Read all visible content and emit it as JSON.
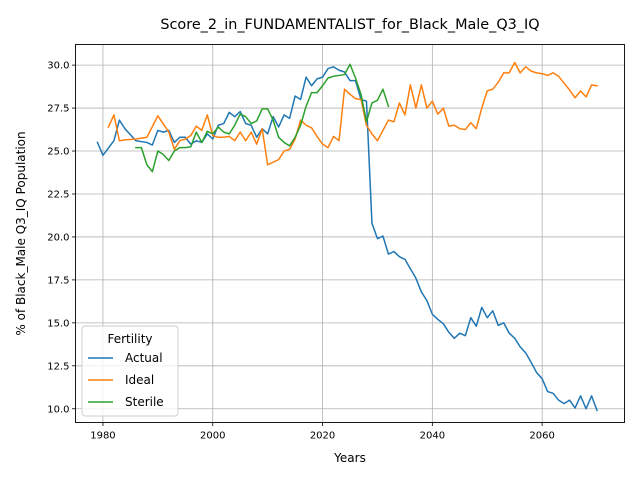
{
  "chart_data": {
    "type": "line",
    "title": "Score_2_in_FUNDAMENTALIST_for_Black_Male_Q3_IQ",
    "xlabel": "Years",
    "ylabel": "% of Black_Male Q3_IQ Population",
    "xlim": [
      1975,
      2075
    ],
    "ylim": [
      9.2,
      31.2
    ],
    "xticks": [
      1980,
      2000,
      2020,
      2040,
      2060
    ],
    "xtick_labels": [
      "1980",
      "2000",
      "2020",
      "2040",
      "2060"
    ],
    "yticks": [
      10.0,
      12.5,
      15.0,
      17.5,
      20.0,
      22.5,
      25.0,
      27.5,
      30.0
    ],
    "ytick_labels": [
      "10.0",
      "12.5",
      "15.0",
      "17.5",
      "20.0",
      "22.5",
      "25.0",
      "27.5",
      "30.0"
    ],
    "grid": true,
    "legend": {
      "title": "Fertility",
      "placement": "lower-left"
    },
    "series": [
      {
        "name": "Actual",
        "color": "#1f77b4",
        "x": [
          1979,
          1980,
          1982,
          1983,
          1984,
          1986,
          1988,
          1989,
          1990,
          1991,
          1992,
          1993,
          1994,
          1995,
          1996,
          1997,
          1998,
          1999,
          2000,
          2001,
          2002,
          2003,
          2004,
          2005,
          2006,
          2007,
          2008,
          2009,
          2010,
          2011,
          2012,
          2013,
          2014,
          2015,
          2016,
          2017,
          2018,
          2019,
          2020,
          2021,
          2022,
          2023,
          2024,
          2025,
          2026,
          2027,
          2028,
          2029,
          2030,
          2031,
          2032,
          2033,
          2034,
          2035,
          2036,
          2037,
          2038,
          2039,
          2040,
          2041,
          2042,
          2043,
          2044,
          2045,
          2046,
          2047,
          2048,
          2049,
          2050,
          2051,
          2052,
          2053,
          2054,
          2055,
          2056,
          2057,
          2058,
          2059,
          2060,
          2061,
          2062,
          2063,
          2064,
          2065,
          2066,
          2067,
          2068,
          2069,
          2070
        ],
        "y": [
          25.5,
          24.75,
          25.6,
          26.8,
          26.3,
          25.6,
          25.5,
          25.35,
          26.2,
          26.1,
          26.2,
          25.5,
          25.8,
          25.8,
          25.4,
          25.6,
          25.5,
          26.0,
          25.7,
          26.5,
          26.6,
          27.25,
          27.0,
          27.3,
          26.6,
          26.5,
          25.8,
          26.3,
          26.0,
          27.0,
          26.4,
          27.1,
          26.9,
          28.2,
          28.0,
          29.3,
          28.8,
          29.2,
          29.3,
          29.8,
          29.9,
          29.7,
          29.6,
          29.1,
          29.1,
          28.0,
          27.9,
          20.8,
          19.9,
          20.05,
          19.0,
          19.15,
          18.85,
          18.7,
          18.15,
          17.6,
          16.8,
          16.3,
          15.5,
          15.2,
          14.95,
          14.45,
          14.1,
          14.4,
          14.25,
          15.3,
          14.8,
          15.9,
          15.3,
          15.7,
          14.85,
          15.0,
          14.4,
          14.1,
          13.6,
          13.25,
          12.7,
          12.1,
          11.75,
          11.0,
          10.9,
          10.5,
          10.3,
          10.5,
          10.05,
          10.75,
          10.0,
          10.75,
          9.9
        ]
      },
      {
        "name": "Ideal",
        "color": "#ff7f0e",
        "x": [
          1981,
          1982,
          1983,
          1984,
          1986,
          1988,
          1990,
          1992,
          1993,
          1994,
          1995,
          1996,
          1997,
          1998,
          1999,
          2000,
          2001,
          2002,
          2003,
          2004,
          2005,
          2006,
          2007,
          2008,
          2009,
          2010,
          2011,
          2012,
          2013,
          2014,
          2015,
          2016,
          2017,
          2018,
          2019,
          2020,
          2021,
          2022,
          2023,
          2024,
          2025,
          2026,
          2027,
          2028,
          2029,
          2030,
          2031,
          2032,
          2033,
          2034,
          2035,
          2036,
          2037,
          2038,
          2039,
          2040,
          2041,
          2042,
          2043,
          2044,
          2045,
          2046,
          2047,
          2048,
          2049,
          2050,
          2051,
          2052,
          2053,
          2054,
          2055,
          2056,
          2057,
          2058,
          2059,
          2060,
          2061,
          2062,
          2063,
          2064,
          2065,
          2066,
          2067,
          2068,
          2069,
          2070
        ],
        "y": [
          26.4,
          27.1,
          25.6,
          25.65,
          25.7,
          25.8,
          27.05,
          26.1,
          25.1,
          25.6,
          25.7,
          25.9,
          26.45,
          26.2,
          27.1,
          25.9,
          25.8,
          25.8,
          25.85,
          25.6,
          26.1,
          25.6,
          26.1,
          25.4,
          26.3,
          24.2,
          24.35,
          24.5,
          25.0,
          25.1,
          25.7,
          26.8,
          26.5,
          26.35,
          25.85,
          25.4,
          25.2,
          25.85,
          25.6,
          28.6,
          28.3,
          28.05,
          28.0,
          26.5,
          26.0,
          25.6,
          26.2,
          26.8,
          26.7,
          27.8,
          27.1,
          28.85,
          27.5,
          28.85,
          27.5,
          27.9,
          27.15,
          27.5,
          26.45,
          26.5,
          26.3,
          26.25,
          26.65,
          26.3,
          27.5,
          28.5,
          28.6,
          29.0,
          29.55,
          29.55,
          30.15,
          29.55,
          29.9,
          29.65,
          29.55,
          29.5,
          29.4,
          29.55,
          29.35,
          28.95,
          28.55,
          28.1,
          28.5,
          28.15,
          28.85,
          28.8
        ]
      },
      {
        "name": "Sterile",
        "color": "#2ca02c",
        "x": [
          1986,
          1987,
          1988,
          1989,
          1990,
          1991,
          1992,
          1993,
          1994,
          1995,
          1996,
          1997,
          1998,
          1999,
          2000,
          2001,
          2002,
          2003,
          2004,
          2005,
          2006,
          2007,
          2008,
          2009,
          2010,
          2011,
          2012,
          2013,
          2014,
          2015,
          2016,
          2017,
          2018,
          2019,
          2020,
          2021,
          2022,
          2023,
          2024,
          2025,
          2026,
          2027,
          2028,
          2029,
          2030,
          2031,
          2032
        ],
        "y": [
          25.2,
          25.2,
          24.2,
          23.8,
          25.0,
          24.8,
          24.45,
          25.0,
          25.2,
          25.2,
          25.25,
          26.1,
          25.5,
          26.15,
          26.0,
          26.4,
          26.1,
          26.0,
          26.5,
          27.15,
          27.0,
          26.6,
          26.75,
          27.45,
          27.45,
          26.8,
          25.8,
          25.5,
          25.3,
          25.8,
          26.5,
          27.6,
          28.4,
          28.4,
          28.8,
          29.25,
          29.35,
          29.4,
          29.45,
          30.05,
          29.25,
          28.3,
          26.7,
          27.8,
          27.95,
          28.6,
          27.6
        ]
      }
    ]
  }
}
